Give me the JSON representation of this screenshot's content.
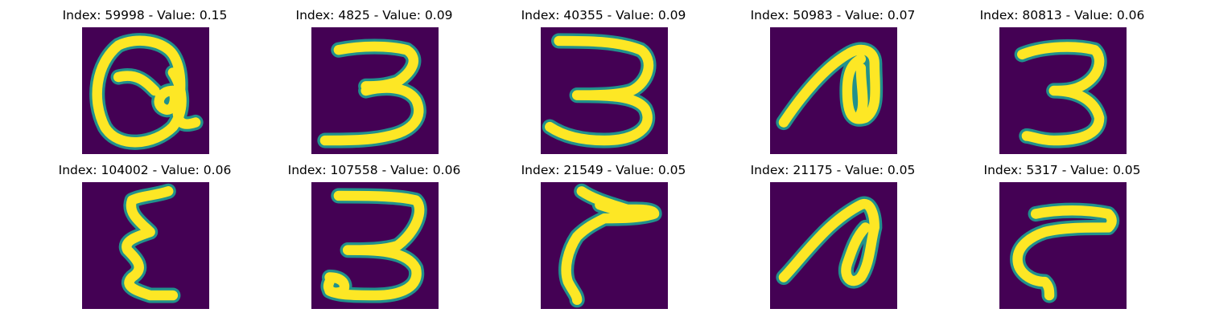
{
  "colors": {
    "background": "#440154",
    "edge": "#21918c",
    "stroke": "#fde725"
  },
  "panels": [
    {
      "title": "Index: 59998 - Value: 0.15",
      "index": 59998,
      "value": 0.15
    },
    {
      "title": "Index: 4825 - Value: 0.09",
      "index": 4825,
      "value": 0.09
    },
    {
      "title": "Index: 40355 - Value: 0.09",
      "index": 40355,
      "value": 0.09
    },
    {
      "title": "Index: 50983 - Value: 0.07",
      "index": 50983,
      "value": 0.07
    },
    {
      "title": "Index: 80813 - Value: 0.06",
      "index": 80813,
      "value": 0.06
    },
    {
      "title": "Index: 104002 - Value: 0.06",
      "index": 104002,
      "value": 0.06
    },
    {
      "title": "Index: 107558 - Value: 0.06",
      "index": 107558,
      "value": 0.06
    },
    {
      "title": "Index: 21549 - Value: 0.05",
      "index": 21549,
      "value": 0.05
    },
    {
      "title": "Index: 21175 - Value: 0.05",
      "index": 21175,
      "value": 0.05
    },
    {
      "title": "Index: 5317 - Value: 0.05",
      "index": 5317,
      "value": 0.05
    }
  ]
}
